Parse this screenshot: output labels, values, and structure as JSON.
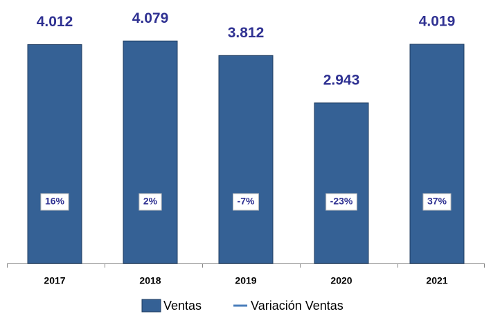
{
  "chart_data": {
    "type": "bar",
    "categories": [
      "2017",
      "2018",
      "2019",
      "2020",
      "2021"
    ],
    "series": [
      {
        "name": "Ventas",
        "color": "#356195",
        "values": [
          4012,
          4079,
          3812,
          2943,
          4019
        ],
        "value_labels": [
          "4.012",
          "4.079",
          "3.812",
          "2.943",
          "4.019"
        ]
      },
      {
        "name": "Variación Ventas",
        "color": "#4a7ebb",
        "axis": "y2",
        "values": [
          16,
          2,
          -7,
          -23,
          37
        ],
        "value_labels": [
          "16%",
          "2%",
          "-7%",
          "-23%",
          "37%"
        ]
      }
    ],
    "ylim": [
      0,
      4830
    ],
    "legend": "bottom"
  }
}
